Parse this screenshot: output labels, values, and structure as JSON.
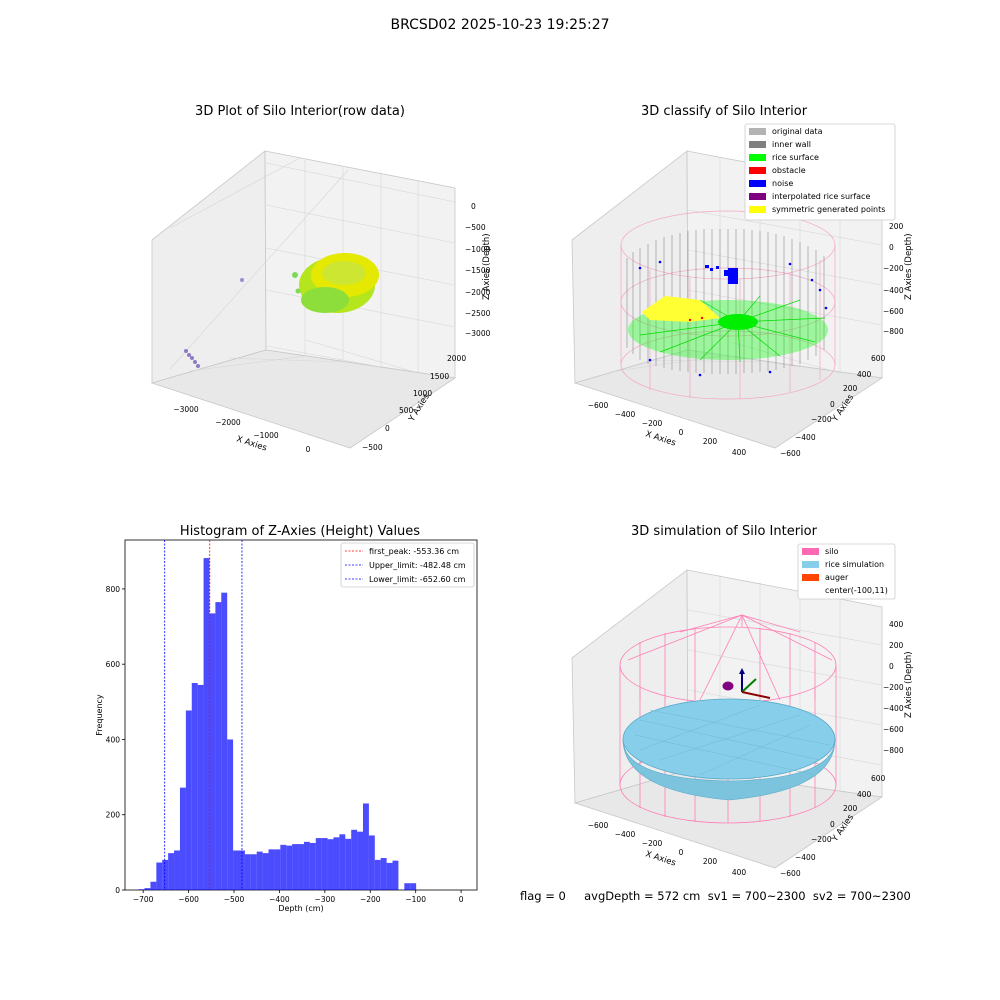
{
  "suptitle": "BRCSD02 2025-10-23 19:25:27",
  "footer": "flag = 0     avgDepth = 572 cm  sv1 = 700~2300  sv2 = 700~2300",
  "colors": {
    "original": "#b3b3b3",
    "inner_wall": "#808080",
    "rice_surface": "#00ff00",
    "obstacle": "#ff0000",
    "noise": "#0000ff",
    "interpolated": "#800080",
    "symmetric": "#ffff00",
    "silo": "#ff69b4",
    "rice_sim": "#87ceeb",
    "auger": "#ff4500",
    "hist": "#0000ff"
  },
  "chart_data": [
    {
      "type": "scatter",
      "title": "3D Plot of Silo Interior(row data)",
      "xlabel": "X Axies",
      "ylabel": "Y Axies",
      "zlabel": "Z Axies (Depth)",
      "x_ticks": [
        "−3000",
        "−2000",
        "−1000",
        "0"
      ],
      "y_ticks": [
        "−500",
        "0",
        "500",
        "1000",
        "1500",
        "2000"
      ],
      "z_ticks": [
        "0",
        "−500",
        "−1000",
        "−1500",
        "−2000",
        "−2500",
        "−3000"
      ],
      "grid": true
    },
    {
      "type": "scatter",
      "title": "3D classify of Silo Interior",
      "xlabel": "X Axies",
      "ylabel": "Y Axies",
      "zlabel": "Z Axies (Depth)",
      "x_ticks": [
        "−600",
        "−400",
        "−200",
        "0",
        "200",
        "400"
      ],
      "y_ticks": [
        "−600",
        "−400",
        "−200",
        "0",
        "200",
        "400",
        "600"
      ],
      "z_ticks": [
        "200",
        "0",
        "−200",
        "−400",
        "−600",
        "−800"
      ],
      "z_ticks_top_partial": "00",
      "legend": [
        "original data",
        "inner wall",
        "rice surface",
        "obstacle",
        "noise",
        "interpolated rice surface",
        "symmetric generated points"
      ],
      "legend_position": "top-right",
      "grid": true
    },
    {
      "type": "bar",
      "title": "Histogram of Z-Axies (Height) Values",
      "xlabel": "Depth (cm)",
      "ylabel": "Frequency",
      "xlim": [
        -740,
        35
      ],
      "ylim": [
        0,
        930
      ],
      "x_ticks": [
        -700,
        -600,
        -500,
        -400,
        -300,
        -200,
        -100,
        0
      ],
      "x_tick_labels": [
        "−700",
        "−600",
        "−500",
        "−400",
        "−300",
        "−200",
        "−100",
        "0"
      ],
      "y_ticks": [
        0,
        200,
        400,
        600,
        800
      ],
      "bin_start": -710,
      "bin_width": 13,
      "values": [
        2,
        5,
        22,
        73,
        80,
        98,
        105,
        272,
        477,
        550,
        545,
        882,
        735,
        765,
        790,
        400,
        105,
        105,
        95,
        95,
        102,
        98,
        108,
        108,
        120,
        118,
        122,
        122,
        128,
        125,
        138,
        138,
        135,
        140,
        148,
        136,
        160,
        155,
        230,
        145,
        80,
        85,
        72,
        78,
        0,
        18,
        18
      ],
      "vlines": [
        {
          "label": "first_peak: -553.36 cm",
          "x": -553.36,
          "color": "#ff0000"
        },
        {
          "label": "Upper_limit: -482.48 cm",
          "x": -482.48,
          "color": "#0000ff"
        },
        {
          "label": "Lower_limit: -652.60 cm",
          "x": -652.6,
          "color": "#0000ff"
        }
      ],
      "legend_position": "top-right"
    },
    {
      "type": "scatter",
      "title": "3D simulation of Silo Interior",
      "xlabel": "X Axies",
      "ylabel": "Y Axies",
      "zlabel": "Z Axies (Depth)",
      "x_ticks": [
        "−600",
        "−400",
        "−200",
        "0",
        "200",
        "400"
      ],
      "y_ticks": [
        "−600",
        "−400",
        "−200",
        "0",
        "200",
        "400",
        "600"
      ],
      "z_ticks": [
        "400",
        "200",
        "0",
        "−200",
        "−400",
        "−600",
        "−800"
      ],
      "legend": [
        "silo",
        "rice simulation",
        "auger",
        "center(-100,11)"
      ],
      "legend_position": "top-right",
      "grid": true
    }
  ]
}
